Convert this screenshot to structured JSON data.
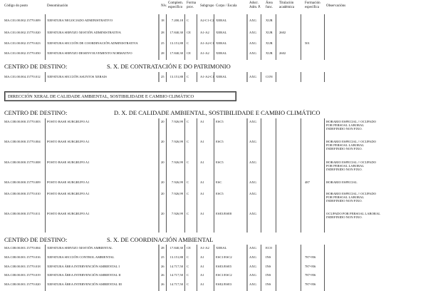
{
  "headers": [
    "Código do posto",
    "Denominación",
    "Nív.",
    "Complem. específico",
    "Forma prov.",
    "Subgrupo",
    "Corpo / Escala",
    "Adscr. Adm. P.",
    "Área func.",
    "Titulación académica",
    "Formación específica",
    "Observacións"
  ],
  "centro_label": "CENTRO DE DESTINO:",
  "direccion_box": "DIRECCIÓN XERAL DE CALIDADE AMBIENTAL, SOSTIBILIDADE E CAMBIO CLIMÁTICO",
  "groups": [
    {
      "centro": "",
      "rows": [
        [
          "MA.C01.00.002.15770.009",
          "XEFATURA NEGOCIADO ADMINISTRATIVO",
          "18",
          "7.200,18",
          "C",
          "A2-C1-C2",
          "XERAL",
          "AXG",
          "XUR",
          "",
          "",
          ""
        ],
        [
          "MA.C01.00.002.15770.020",
          "XEFATURA SERVIZO XESTIÓN ADMINISTRATIVA",
          "28",
          "17.840,30",
          "CE",
          "A1-A2",
          "XERAL",
          "AXG",
          "XUR",
          "2602",
          "",
          ""
        ],
        [
          "MA.C01.00.002.15770.023",
          "XEFATURA SECCIÓN DE COORDINACIÓN ADMINISTRATIVA",
          "25",
          "13.151,88",
          "C",
          "A1-A2-C1",
          "XERAL",
          "AXG",
          "XUR",
          "",
          "501",
          ""
        ],
        [
          "MA.C01.00.002.15770.050",
          "XEFATURA SERVIZO DESENVOLVEMENTO NORMATIVO",
          "28",
          "17.840,30",
          "CE",
          "A1-A2",
          "XERAL",
          "AXG",
          "XUR",
          "2602",
          "",
          ""
        ]
      ]
    },
    {
      "centro": "S. X. DE CONTRATACIÓN E DO PATRIMONIO",
      "rows": [
        [
          "MA.C01.00.004.15770.012",
          "XEFATURA SECCIÓN ASUNTOS XERAIS",
          "25",
          "13.151,88",
          "C",
          "A1-A2-C1",
          "XERAL",
          "AXG",
          "CON",
          "",
          "",
          ""
        ]
      ]
    },
    {
      "centro": "D. X. DE CALIDADE AMBIENTAL, SOSTIBILIDADE E CAMBIO CLIMÁTICO",
      "rows": [
        [
          "MA.C08.00.000.15770.003",
          "POSTO BASE SUBGRUPO A1",
          "20",
          "7.926,99",
          "C",
          "A1",
          "ESC5",
          "AXG",
          "",
          "",
          "",
          "HORARIO ESPECIAL // OCUPADO POR PERSOAL LABORAL INDEFINIDO NON FIXO."
        ],
        [
          "MA.C08.00.000.15770.004",
          "POSTO BASE SUBGRUPO A1",
          "20",
          "7.926,99",
          "C",
          "A1",
          "ESC5",
          "AXG",
          "",
          "",
          "",
          "HORARIO ESPECIAL // OCUPADO POR PERSOAL LABORAL INDEFINIDO NON FIXO."
        ],
        [
          "MA.C08.00.000.15770.008",
          "POSTO BASE SUBGRUPO A1",
          "20",
          "7.926,99",
          "C",
          "A1",
          "ESC5",
          "AXG",
          "",
          "",
          "",
          "HORARIO ESPECIAL // OCUPADO POR PERSOAL LABORAL INDEFINIDO NON FIXO."
        ],
        [
          "MA.C08.00.000.15770.009",
          "POSTO BASE SUBGRUPO A1",
          "20",
          "7.926,99",
          "C",
          "A1",
          "ESC",
          "AXG",
          "",
          "",
          "487",
          "HORARIO ESPECIAL"
        ],
        [
          "MA.C08.00.000.15770.010",
          "POSTO BASE SUBGRUPO A1",
          "20",
          "7.926,99",
          "C",
          "A1",
          "ESC5",
          "AXG",
          "",
          "",
          "",
          "HORARIO ESPECIAL // OCUPADO POR PERSOAL LABORAL INDEFINIDO NON FIXO."
        ],
        [
          "MA.C08.00.000.15770.011",
          "POSTO BASE SUBGRUPO A1",
          "20",
          "7.926,99",
          "C",
          "A1",
          "ESE3/ESE8",
          "AXG",
          "",
          "",
          "",
          "OCUPADO POR PERSOAL LABORAL INDEFINIDO NON FIXO."
        ]
      ]
    },
    {
      "centro": "S. X. DE COORDINACIÓN AMBIENTAL",
      "rows": [
        [
          "MA.C08.00.001.15770.004",
          "XEFATURA SERVIZO XESTIÓN AMBIENTAL",
          "28",
          "17.840,30",
          "CE",
          "A1-A2",
          "XERAL",
          "AXG",
          "ECO",
          "",
          "",
          ""
        ],
        [
          "MA.C08.00.001.15770.016",
          "XEFATURA SECCIÓN CONTROL AMBIENTAL",
          "25",
          "13.151,88",
          "C",
          "A1",
          "ESC1/ESC2",
          "AXG",
          "INS",
          "",
          "787-956",
          ""
        ],
        [
          "MA.C08.00.001.15770.018",
          "XEFATURA ÁREA INTERVENCIÓN AMBIENTAL I",
          "26",
          "14.717,50",
          "C",
          "A1",
          "ESE3/ESE5",
          "AXG",
          "INS",
          "",
          "787-956",
          ""
        ],
        [
          "MA.C08.00.001.15770.019",
          "XEFATURA ÁREA INTERVENCIÓN AMBIENTAL II",
          "26",
          "14.717,50",
          "C",
          "A1",
          "ESC1/ESC2",
          "AXG",
          "INS",
          "",
          "787-956",
          ""
        ],
        [
          "MA.C08.00.001.15770.020",
          "XEFATURA ÁREA INTERVENCIÓN AMBIENTAL III",
          "26",
          "14.717,50",
          "C",
          "A1",
          "ESE2/ESE3",
          "AXG",
          "INS",
          "",
          "787-956",
          ""
        ]
      ]
    }
  ]
}
